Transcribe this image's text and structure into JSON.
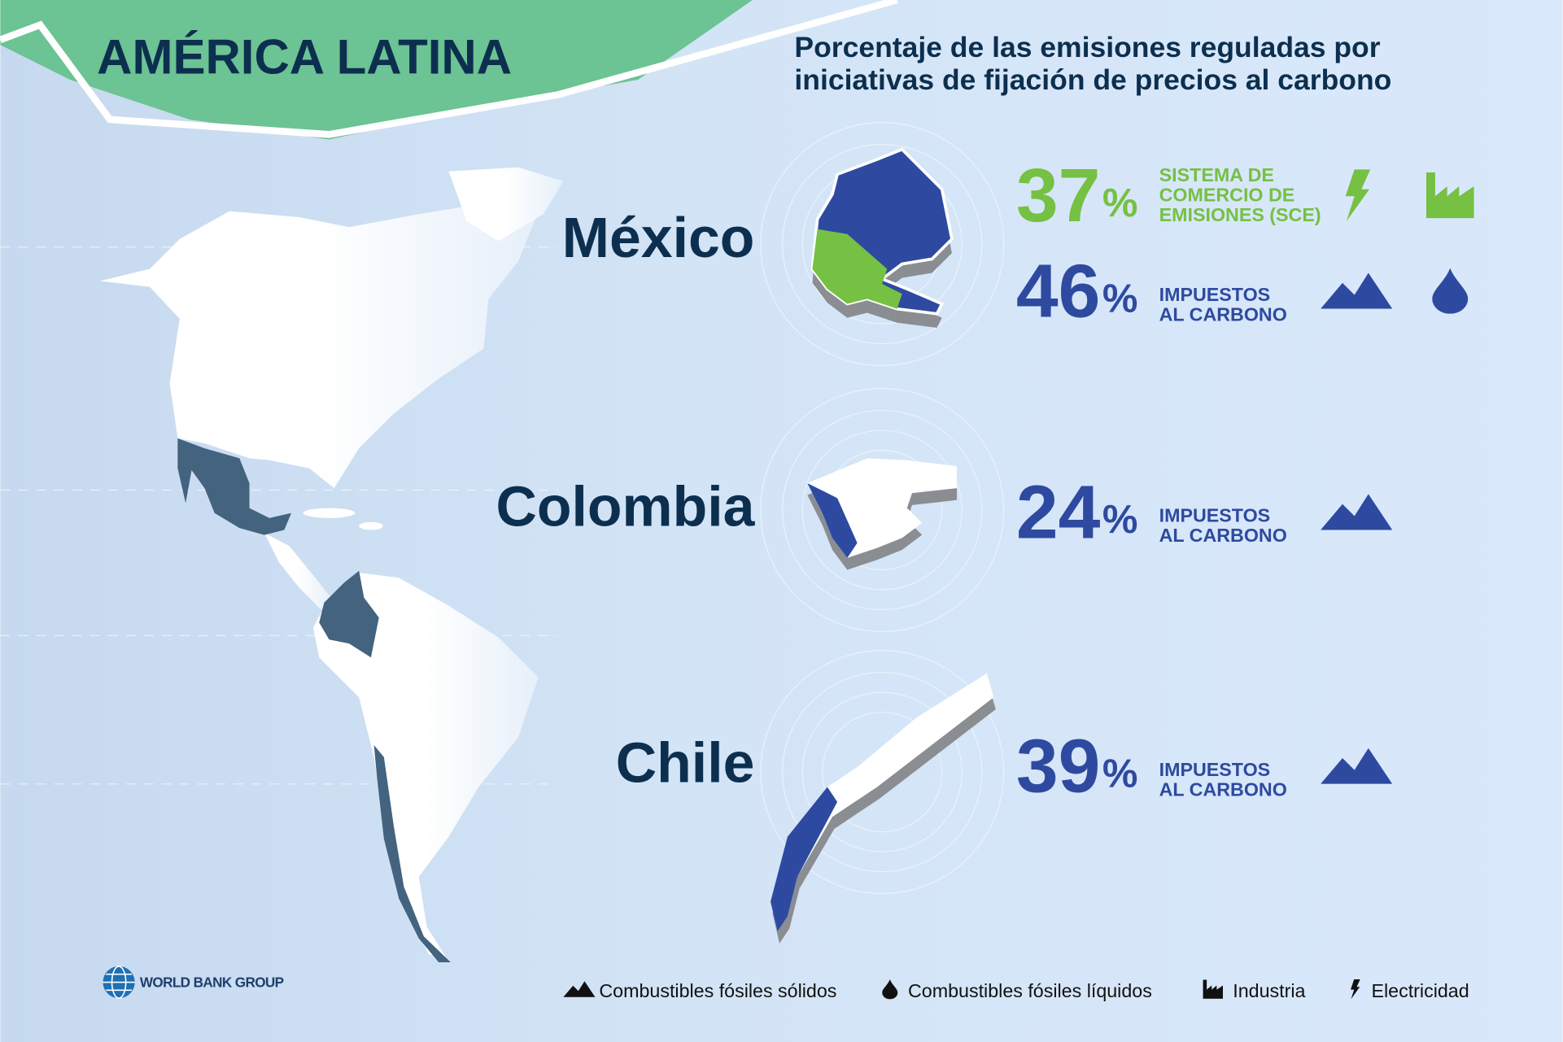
{
  "header": {
    "title": "AMÉRICA LATINA",
    "subtitle": [
      "Porcentaje de las emisiones reguladas por",
      "iniciativas de fijación de precios al carbono"
    ]
  },
  "countries": [
    {
      "name": "México",
      "instruments": [
        {
          "value": 37,
          "unit": "%",
          "label": [
            "SISTEMA DE",
            "COMERCIO DE",
            "EMISIONES (SCE)"
          ]
        },
        {
          "value": 46,
          "unit": "%",
          "label": [
            "IMPUESTOS",
            "AL CARBONO"
          ]
        }
      ]
    },
    {
      "name": "Colombia",
      "instruments": [
        {
          "value": 24,
          "unit": "%",
          "label": [
            "IMPUESTOS",
            "AL CARBONO"
          ]
        }
      ]
    },
    {
      "name": "Chile",
      "instruments": [
        {
          "value": 39,
          "unit": "%",
          "label": [
            "IMPUESTOS",
            "AL CARBONO"
          ]
        }
      ]
    }
  ],
  "legend": [
    "Combustibles fósiles sólidos",
    "Combustibles fósiles líquidos",
    "Industria",
    "Electricidad"
  ],
  "logo": "WORLD BANK GROUP"
}
